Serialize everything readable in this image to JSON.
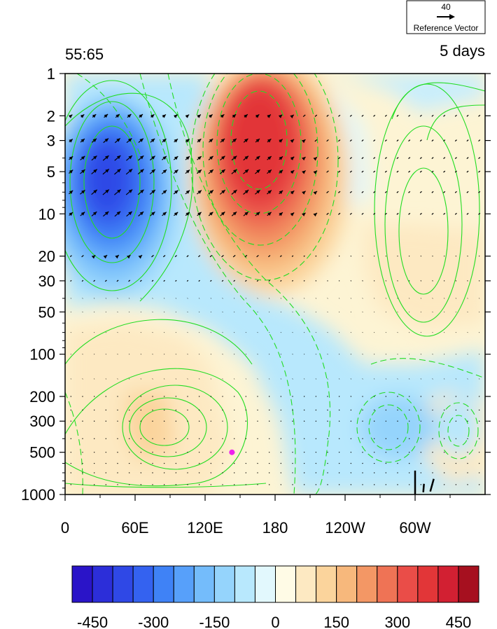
{
  "chart_data": {
    "type": "heatmap",
    "title_left": "55:65",
    "title_right": "5 days",
    "reference_vector": {
      "value": "40",
      "label": "Reference Vector"
    },
    "x_ticks": [
      "0",
      "60E",
      "120E",
      "180",
      "120W",
      "60W"
    ],
    "y_ticks": [
      "1",
      "2",
      "3",
      "5",
      "10",
      "20",
      "30",
      "50",
      "100",
      "200",
      "300",
      "500",
      "1000"
    ],
    "y_scale": "log",
    "y_reversed": true,
    "colorbar_ticks": [
      "-450",
      "-300",
      "-150",
      "0",
      "150",
      "300",
      "450"
    ],
    "colorbar_colors": [
      "#2a14c8",
      "#2c2ed9",
      "#2f48e6",
      "#3462f0",
      "#3f82f6",
      "#57a0fa",
      "#74bcfb",
      "#95d4fc",
      "#b8e8fd",
      "#e2f8fd",
      "#fffbe6",
      "#fde9c2",
      "#fbd49c",
      "#f7b87c",
      "#f39765",
      "#ef7355",
      "#ea4d48",
      "#e23638",
      "#d22032",
      "#a6101f"
    ],
    "features": [
      {
        "kind": "negative_anomaly",
        "lon": 45,
        "p": 7,
        "value": -450
      },
      {
        "kind": "positive_anomaly",
        "lon": 170,
        "p": 6,
        "value": 450
      },
      {
        "kind": "positive_anomaly",
        "lon": 80,
        "p": 350,
        "value": 150
      },
      {
        "kind": "negative_anomaly",
        "lon": 292,
        "p": 320,
        "value": -150
      }
    ],
    "marker": {
      "lon": 143,
      "p": 500,
      "color": "#ee22ee"
    }
  }
}
